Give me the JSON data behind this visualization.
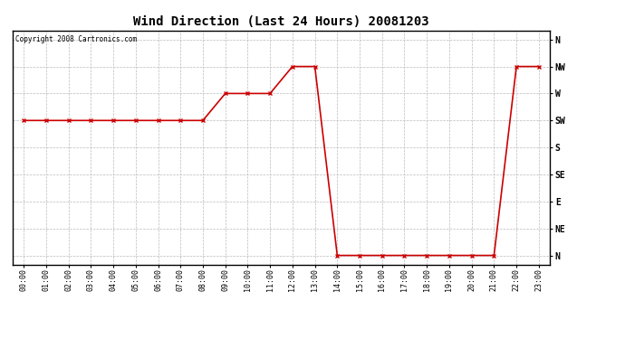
{
  "title": "Wind Direction (Last 24 Hours) 20081203",
  "copyright_text": "Copyright 2008 Cartronics.com",
  "line_color": "#cc0000",
  "bg_color": "#ffffff",
  "plot_bg_color": "#ffffff",
  "grid_color": "#bbbbbb",
  "x_labels": [
    "00:00",
    "01:00",
    "02:00",
    "03:00",
    "04:00",
    "05:00",
    "06:00",
    "07:00",
    "08:00",
    "09:00",
    "10:00",
    "11:00",
    "12:00",
    "13:00",
    "14:00",
    "15:00",
    "16:00",
    "17:00",
    "18:00",
    "19:00",
    "20:00",
    "21:00",
    "22:00",
    "23:00"
  ],
  "y_ticks": [
    0,
    45,
    90,
    135,
    180,
    225,
    270,
    315,
    360
  ],
  "y_tick_labels": [
    "N",
    "NE",
    "E",
    "SE",
    "S",
    "SW",
    "W",
    "NW",
    "N"
  ],
  "hours": [
    0,
    1,
    2,
    3,
    4,
    5,
    6,
    7,
    8,
    9,
    10,
    11,
    12,
    13,
    14,
    15,
    16,
    17,
    18,
    19,
    20,
    21,
    22,
    23
  ],
  "values": [
    225,
    225,
    225,
    225,
    225,
    225,
    225,
    225,
    225,
    270,
    270,
    270,
    315,
    315,
    0,
    0,
    0,
    0,
    0,
    0,
    0,
    0,
    315,
    315
  ],
  "ylim": [
    -15,
    375
  ],
  "marker": "x",
  "marker_size": 3,
  "line_width": 1.2,
  "title_fontsize": 10,
  "tick_fontsize": 6,
  "ylabel_fontsize": 7,
  "copyright_fontsize": 5.5
}
